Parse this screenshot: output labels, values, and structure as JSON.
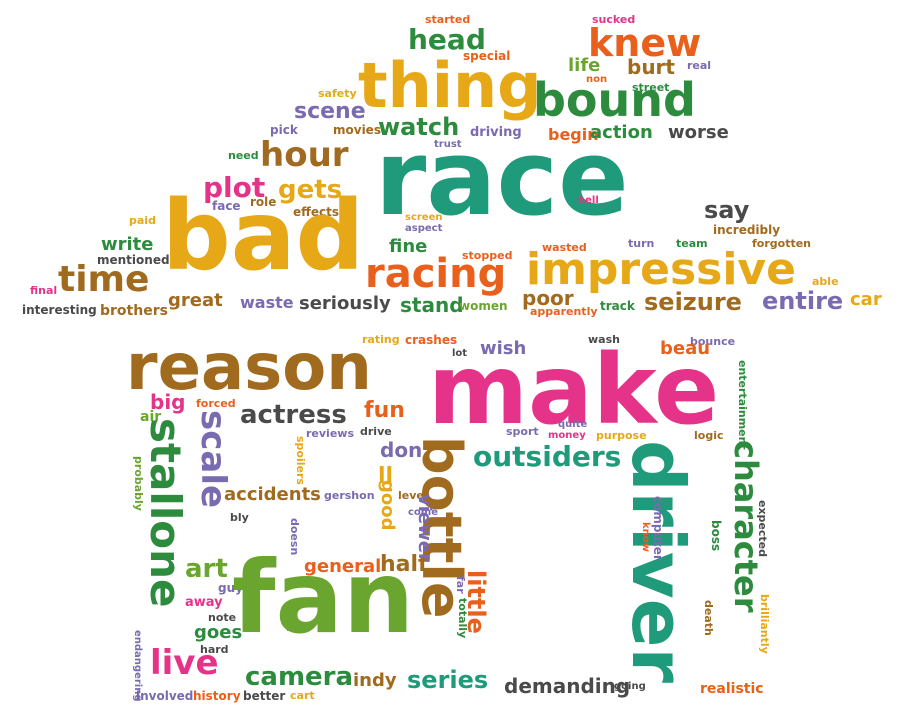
{
  "cloud": {
    "race": "race",
    "bad": "bad",
    "make": "make",
    "fan": "fan",
    "driver": "driver",
    "reason": "reason",
    "thing": "thing",
    "bound": "bound",
    "impressive": "impressive",
    "racing": "racing",
    "time": "time",
    "hour": "hour",
    "knew": "knew",
    "head": "head",
    "character": "character",
    "stallone": "stallone",
    "bottle": "bottle",
    "scale": "scale",
    "outsiders": "outsiders",
    "actress": "actress",
    "series": "series",
    "camera": "camera",
    "live": "live",
    "little": "little",
    "demanding": "demanding",
    "seizure": "seizure",
    "entire": "entire",
    "say": "say",
    "plot": "plot",
    "gets": "gets",
    "watch": "watch",
    "scene": "scene",
    "burt": "burt",
    "life": "life",
    "action": "action",
    "worse": "worse",
    "begin": "begin",
    "driving": "driving",
    "movies": "movies",
    "pick": "pick",
    "safety": "safety",
    "started": "started",
    "sucked": "sucked",
    "special": "special",
    "non": "non",
    "street": "street",
    "real": "real",
    "trust": "trust",
    "need": "need",
    "face": "face",
    "role": "role",
    "effects": "effects",
    "paid": "paid",
    "write": "write",
    "mentioned": "mentioned",
    "final": "final",
    "interesting": "interesting",
    "brothers": "brothers",
    "great": "great",
    "waste": "waste",
    "seriously": "seriously",
    "stand": "stand",
    "women": "women",
    "poor": "poor",
    "apparently": "apparently",
    "track": "track",
    "car": "car",
    "able": "able",
    "fine": "fine",
    "screen": "screen",
    "aspect": "aspect",
    "stopped": "stopped",
    "wasted": "wasted",
    "turn": "turn",
    "team": "team",
    "forgotten": "forgotten",
    "incredibly": "incredibly",
    "hell": "hell",
    "rating": "rating",
    "crashes": "crashes",
    "lot": "lot",
    "wish": "wish",
    "wash": "wash",
    "beau": "beau",
    "bounce": "bounce",
    "big": "big",
    "forced": "forced",
    "air": "air",
    "fun": "fun",
    "reviews": "reviews",
    "drive": "drive",
    "sport": "sport",
    "quite": "quite",
    "money": "money",
    "purpose": "purpose",
    "logic": "logic",
    "entertainment": "entertainment",
    "don": "don",
    "ll": "ll",
    "spoilers": "spoilers",
    "probably": "probably",
    "accidents": "accidents",
    "gershon": "gershon",
    "good": "good",
    "level": "level",
    "come": "come",
    "viewer": "viewer",
    "bly": "bly",
    "doesn": "doesn",
    "know": "know",
    "computer": "computer",
    "expected": "expected",
    "boss": "boss",
    "art": "art",
    "general": "general",
    "half": "half",
    "aren": "aren",
    "guy": "guy",
    "away": "away",
    "far": "far",
    "note": "note",
    "goes": "goes",
    "hard": "hard",
    "ve": "ve",
    "totally": "totally",
    "death": "death",
    "brilliantly": "brilliantly",
    "endangering": "endangering",
    "involved": "involved",
    "history": "history",
    "better": "better",
    "cart": "cart",
    "indy": "indy",
    "going": "going",
    "realistic": "realistic"
  }
}
